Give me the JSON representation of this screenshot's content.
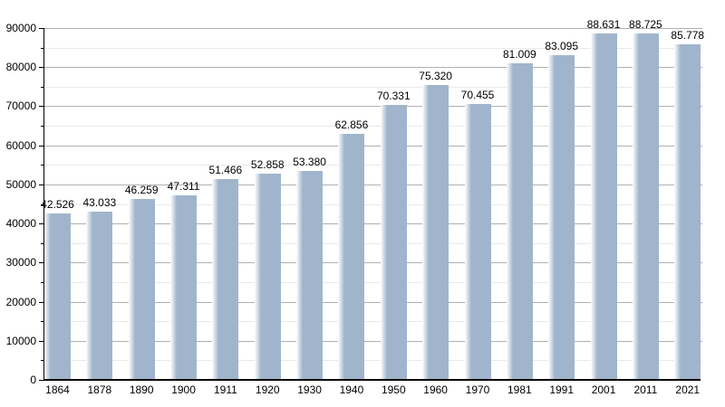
{
  "chart_data": {
    "type": "bar",
    "title": "",
    "xlabel": "",
    "ylabel": "",
    "categories": [
      "1864",
      "1878",
      "1890",
      "1900",
      "1911",
      "1920",
      "1930",
      "1940",
      "1950",
      "1960",
      "1970",
      "1981",
      "1991",
      "2001",
      "2011",
      "2021"
    ],
    "values": [
      42526,
      43033,
      46259,
      47311,
      51466,
      52858,
      53380,
      62856,
      70331,
      75320,
      70455,
      81009,
      83095,
      88631,
      88725,
      85778
    ],
    "value_labels": [
      "42.526",
      "43.033",
      "46.259",
      "47.311",
      "51.466",
      "52.858",
      "53.380",
      "62.856",
      "70.331",
      "75.320",
      "70.455",
      "81.009",
      "83.095",
      "88.631",
      "88.725",
      "85.778"
    ],
    "ylim": [
      0,
      90000
    ],
    "y_major_step": 10000,
    "y_minor_step": 5000,
    "y_tick_labels": [
      "0",
      "10000",
      "20000",
      "30000",
      "40000",
      "50000",
      "60000",
      "70000",
      "80000",
      "90000"
    ],
    "grid": true,
    "legend": "none",
    "colors": {
      "bar": "#a0b5cc",
      "bar_fade_left": "#ffffff",
      "grid_major": "#b0b0b0",
      "grid_minor": "#e9e9e9",
      "axis": "#000000",
      "text": "#000000",
      "background": "#ffffff"
    }
  }
}
